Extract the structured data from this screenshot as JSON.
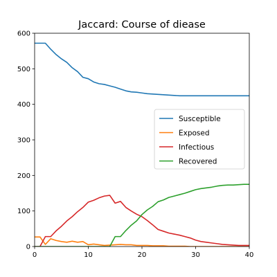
{
  "chart_data": {
    "type": "line",
    "title": "Jaccard: Course of diease",
    "xlabel": "",
    "ylabel": "",
    "xlim": [
      0,
      40
    ],
    "ylim": [
      0,
      600
    ],
    "xticks": [
      0,
      10,
      20,
      30,
      40
    ],
    "yticks": [
      0,
      100,
      200,
      300,
      400,
      500,
      600
    ],
    "grid": false,
    "legend_position": "center-right",
    "x": [
      0,
      1,
      2,
      3,
      4,
      5,
      6,
      7,
      8,
      9,
      10,
      11,
      12,
      13,
      14,
      15,
      16,
      17,
      18,
      19,
      20,
      21,
      22,
      23,
      24,
      25,
      26,
      27,
      28,
      29,
      30,
      31,
      32,
      33,
      34,
      35,
      36,
      37,
      38,
      39,
      40
    ],
    "series": [
      {
        "name": "Susceptible",
        "color": "#1f77b4",
        "values": [
          572,
          572,
          572,
          555,
          540,
          528,
          518,
          503,
          492,
          476,
          472,
          463,
          458,
          456,
          452,
          448,
          443,
          438,
          435,
          434,
          432,
          430,
          429,
          428,
          427,
          426,
          425,
          424,
          424,
          424,
          424,
          424,
          424,
          424,
          424,
          424,
          424,
          424,
          424,
          424,
          424
        ]
      },
      {
        "name": "Exposed",
        "color": "#ff7f0e",
        "values": [
          27,
          27,
          6,
          22,
          17,
          14,
          12,
          15,
          12,
          14,
          5,
          7,
          5,
          3,
          4,
          5,
          6,
          5,
          5,
          3,
          3,
          3,
          2,
          2,
          2,
          1,
          1,
          1,
          1,
          0,
          0,
          0,
          0,
          0,
          0,
          0,
          0,
          0,
          0,
          0,
          0
        ]
      },
      {
        "name": "Infectious",
        "color": "#d62728",
        "values": [
          0,
          0,
          28,
          28,
          44,
          57,
          72,
          84,
          98,
          110,
          125,
          130,
          137,
          142,
          144,
          122,
          127,
          110,
          100,
          91,
          84,
          73,
          61,
          48,
          43,
          38,
          35,
          32,
          28,
          24,
          18,
          14,
          12,
          10,
          8,
          6,
          5,
          4,
          3,
          3,
          3
        ]
      },
      {
        "name": "Recovered",
        "color": "#2ca02c",
        "values": [
          0,
          0,
          0,
          0,
          0,
          0,
          0,
          0,
          0,
          0,
          0,
          0,
          0,
          0,
          0,
          28,
          28,
          45,
          60,
          72,
          90,
          103,
          113,
          126,
          131,
          138,
          142,
          146,
          150,
          155,
          160,
          163,
          165,
          167,
          170,
          172,
          173,
          173,
          174,
          175,
          175
        ]
      }
    ]
  }
}
